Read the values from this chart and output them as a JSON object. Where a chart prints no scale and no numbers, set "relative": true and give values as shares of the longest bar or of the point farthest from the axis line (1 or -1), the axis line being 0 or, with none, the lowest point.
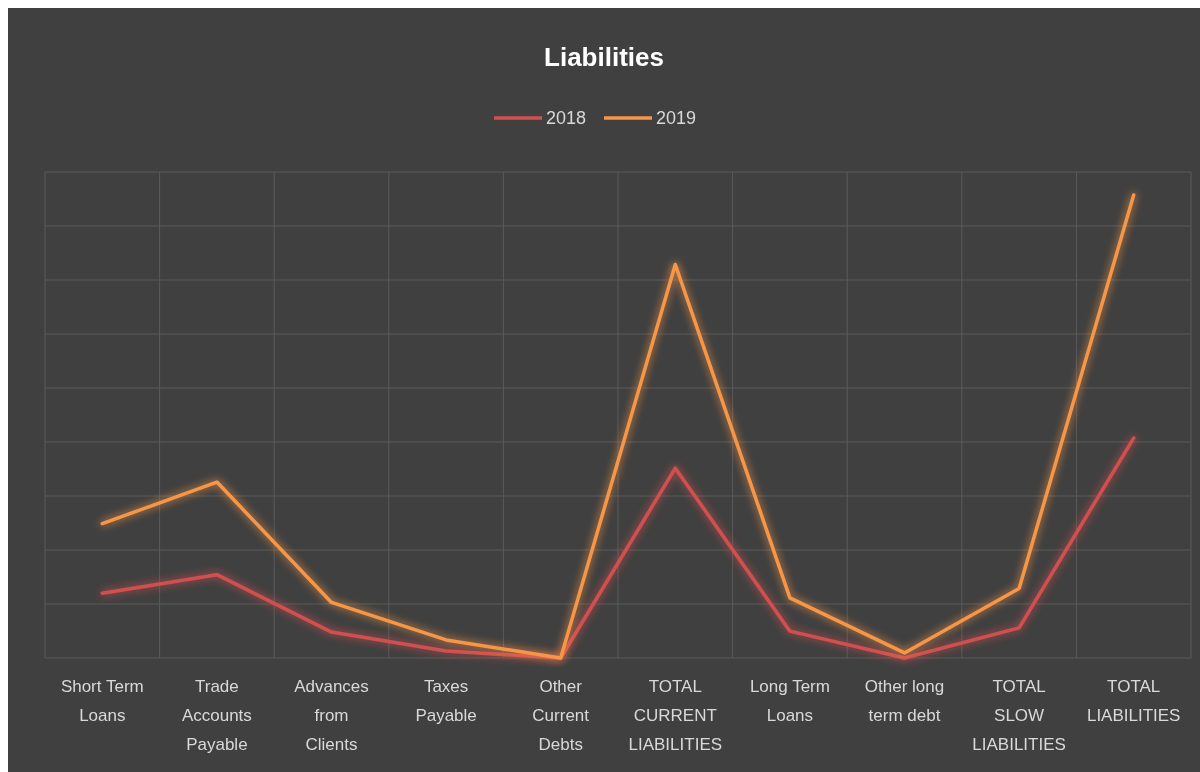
{
  "chart_data": {
    "type": "line",
    "title": "Liabilities",
    "relative": true,
    "grid": true,
    "legend": "top",
    "line_style": "solid",
    "categories": [
      "Short Term Loans",
      "Trade Accounts Payable",
      "Advances from Clients",
      "Taxes Payable",
      "Other Current Debts",
      "TOTAL CURRENT LIABILITIES",
      "Long Term Loans",
      "Other long term debt",
      "TOTAL SLOW LIABILITIES",
      "TOTAL LIABILITIES"
    ],
    "series": [
      {
        "name": "2018",
        "color": "#d2504f",
        "values": [
          0.14,
          0.18,
          0.056,
          0.015,
          0,
          0.41,
          0.058,
          0,
          0.065,
          0.475
        ]
      },
      {
        "name": "2019",
        "color": "#f79646",
        "values": [
          0.29,
          0.38,
          0.12,
          0.039,
          0,
          0.85,
          0.13,
          0.011,
          0.15,
          1
        ]
      }
    ]
  }
}
